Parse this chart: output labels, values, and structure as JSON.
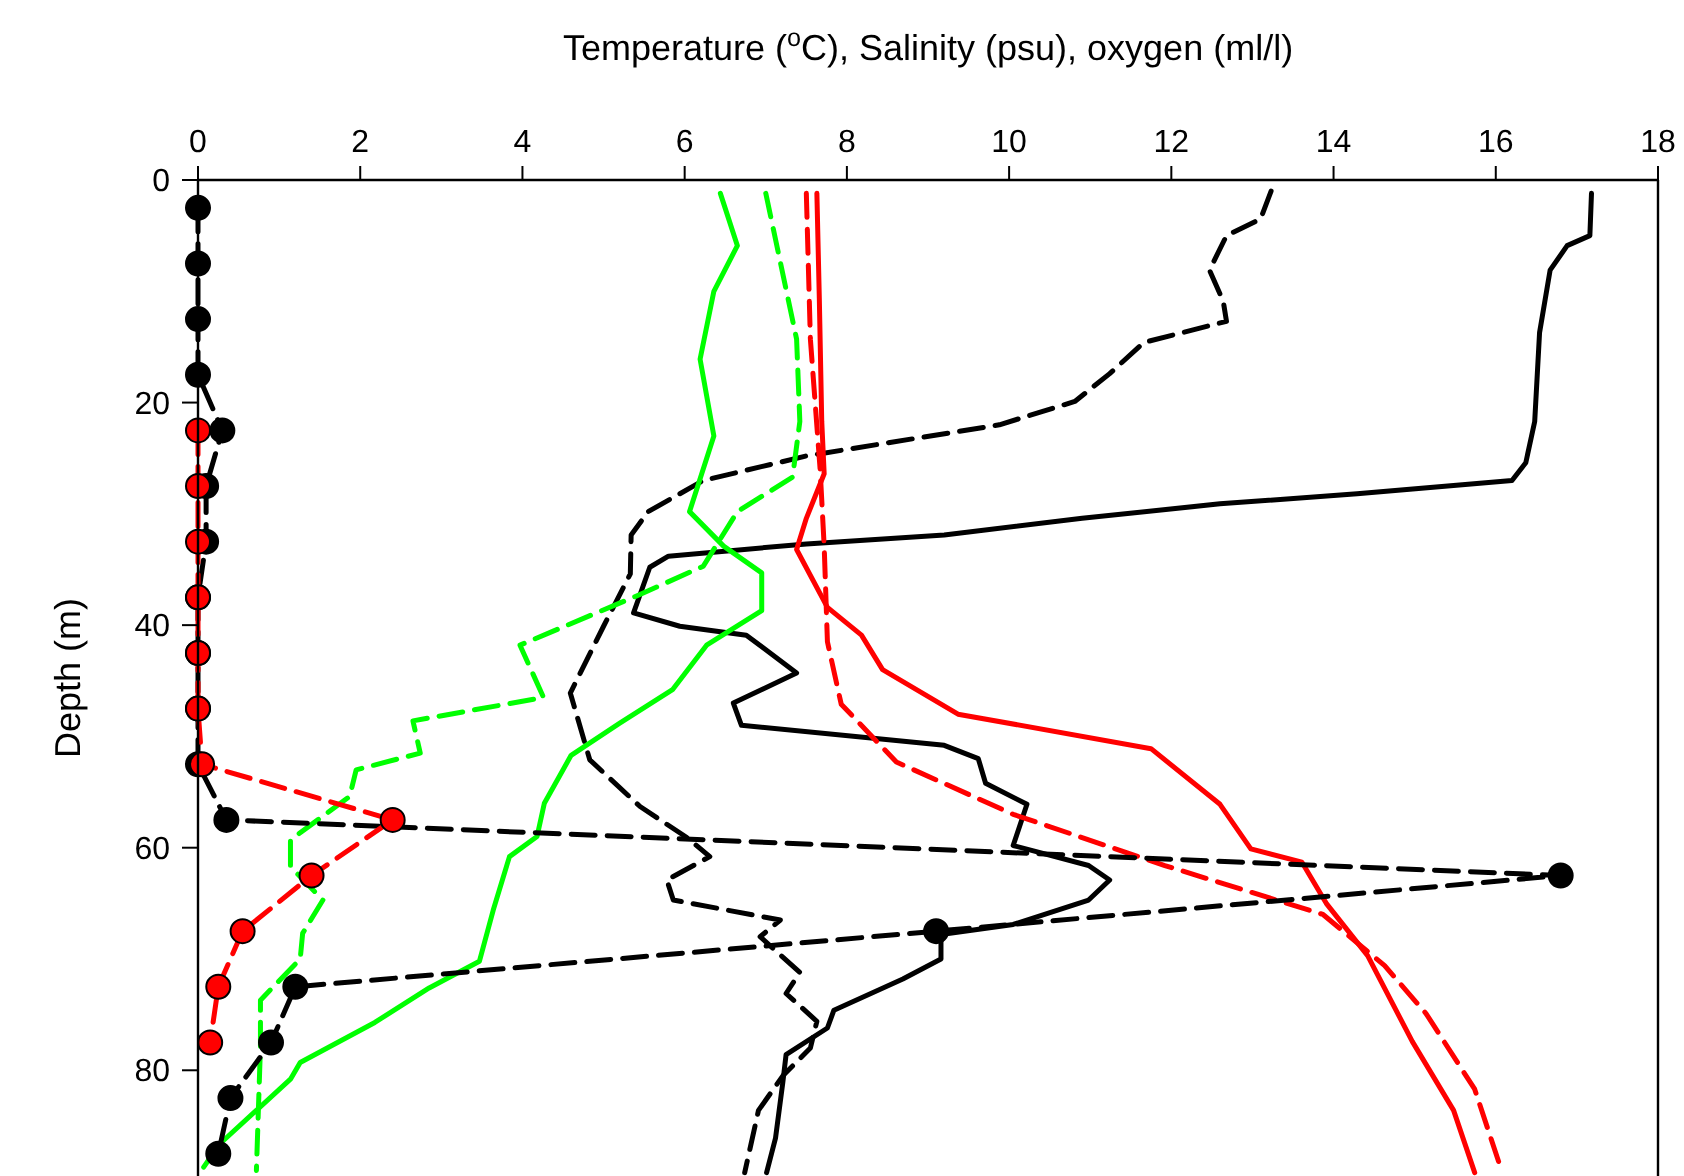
{
  "chart_data": {
    "type": "line",
    "orientation": "horizontal",
    "xlabel": "Temperature ($^{o}$C), Salinity (psu), oxygen (ml/l)",
    "ylabel": "Depth (m)",
    "xlim": [
      0,
      18
    ],
    "xticks": [
      0,
      2,
      4,
      6,
      8,
      10,
      12,
      14,
      16,
      18
    ],
    "ylim": [
      89.5,
      0
    ],
    "yticks": [
      0,
      20,
      40,
      60,
      80
    ],
    "series": [
      {
        "color": "#000000",
        "line_style": "solid",
        "marker": "none",
        "x": [
          1.2,
          5.0,
          5.9,
          8.1,
          13.7,
          21.7,
          25.4,
          27.0,
          28.2,
          29.1,
          30.4,
          31.9,
          32.7,
          33.8,
          34.8,
          38.9,
          40.1,
          40.9,
          44.3,
          47.0,
          49.0,
          50.8,
          52.0,
          54.2,
          56.1,
          59.8,
          61.6,
          62.9,
          64.7,
          66.9,
          67.8,
          70.0,
          71.8,
          74.6,
          76.2,
          78.6,
          81.1,
          86.1,
          89.2
        ],
        "values": [
          17.18,
          17.16,
          16.88,
          16.67,
          16.54,
          16.48,
          16.37,
          16.2,
          14.29,
          12.6,
          10.9,
          9.2,
          7.5,
          5.8,
          5.57,
          5.37,
          5.94,
          6.76,
          7.38,
          6.6,
          6.7,
          9.2,
          9.62,
          9.71,
          10.22,
          10.05,
          10.98,
          11.24,
          10.98,
          10.05,
          9.16,
          9.16,
          8.69,
          7.84,
          7.76,
          7.25,
          7.21,
          7.12,
          7.01
        ]
      },
      {
        "color": "#000000",
        "line_style": "dashed",
        "marker": "none",
        "x": [
          1.0,
          3.5,
          5.0,
          8.1,
          10.9,
          12.7,
          14.6,
          17.4,
          19.9,
          22.0,
          24.8,
          27.0,
          29.8,
          31.9,
          35.4,
          40.1,
          46.1,
          52.1,
          56.3,
          59.1,
          60.8,
          62.9,
          64.7,
          66.5,
          68.0,
          71.2,
          73.1,
          75.6,
          78.0,
          80.5,
          83.6,
          89.2
        ],
        "values": [
          13.23,
          13.1,
          12.68,
          12.47,
          12.64,
          12.68,
          11.66,
          11.24,
          10.81,
          9.88,
          7.5,
          6.23,
          5.55,
          5.34,
          5.33,
          5.0,
          4.59,
          4.83,
          5.45,
          6.03,
          6.31,
          5.78,
          5.86,
          7.18,
          6.93,
          7.42,
          7.25,
          7.63,
          7.55,
          7.21,
          6.91,
          6.74
        ]
      },
      {
        "color": "#ff0000",
        "line_style": "solid",
        "marker": "none",
        "x": [
          1.2,
          10.6,
          21.7,
          26.4,
          30.4,
          33.2,
          38.4,
          40.9,
          44.0,
          48.0,
          51.1,
          56.1,
          60.1,
          61.3,
          65.0,
          69.7,
          77.4,
          83.6,
          89.2
        ],
        "values": [
          7.63,
          7.66,
          7.69,
          7.72,
          7.5,
          7.38,
          7.76,
          8.18,
          8.44,
          9.37,
          11.75,
          12.6,
          12.98,
          13.61,
          13.91,
          14.42,
          14.97,
          15.48,
          15.74
        ]
      },
      {
        "color": "#ff0000",
        "line_style": "dashed",
        "marker": "none",
        "x": [
          1.2,
          14.3,
          26.0,
          32.9,
          41.5,
          47.1,
          52.3,
          57.0,
          61.6,
          66.0,
          70.6,
          74.9,
          81.7,
          89.2
        ],
        "values": [
          7.5,
          7.55,
          7.67,
          7.72,
          7.76,
          7.93,
          8.61,
          10.05,
          11.92,
          13.87,
          14.63,
          15.14,
          15.74,
          16.08
        ]
      },
      {
        "color": "#00ff00",
        "line_style": "solid",
        "marker": "none",
        "x": [
          1.2,
          5.9,
          10.0,
          16.1,
          23.0,
          29.8,
          32.9,
          35.3,
          38.7,
          41.8,
          45.8,
          48.8,
          51.7,
          56.0,
          59.0,
          60.8,
          65.6,
          70.2,
          72.6,
          75.7,
          79.3,
          80.8,
          86.6,
          88.7
        ],
        "values": [
          6.44,
          6.65,
          6.36,
          6.19,
          6.36,
          6.06,
          6.48,
          6.95,
          6.95,
          6.27,
          5.85,
          5.2,
          4.6,
          4.27,
          4.18,
          3.84,
          3.64,
          3.47,
          2.85,
          2.18,
          1.26,
          1.14,
          0.27,
          0.07
        ]
      },
      {
        "color": "#00ff00",
        "line_style": "dashed",
        "marker": "none",
        "x": [
          1.2,
          14.3,
          21.7,
          26.7,
          29.8,
          34.7,
          37.4,
          41.8,
          46.5,
          48.6,
          51.5,
          53.0,
          55.4,
          59.3,
          61.7,
          64.7,
          67.7,
          70.0,
          73.7,
          77.9,
          89.0
        ],
        "values": [
          7.0,
          7.38,
          7.42,
          7.33,
          6.65,
          6.23,
          5.4,
          3.97,
          4.26,
          2.65,
          2.74,
          1.95,
          1.87,
          1.14,
          1.14,
          1.54,
          1.29,
          1.26,
          0.77,
          0.77,
          0.72
        ]
      },
      {
        "color": "#000000",
        "line_style": "dashed",
        "marker": "circle",
        "x": [
          2.5,
          7.5,
          12.5,
          17.5,
          22.5,
          27.5,
          32.5,
          37.5,
          42.5,
          47.5,
          52.5,
          57.5,
          62.5,
          67.5,
          72.5,
          77.5,
          82.5,
          87.5
        ],
        "values": [
          0,
          0,
          0,
          0,
          0.3,
          0.1,
          0.1,
          0,
          0,
          0,
          0,
          0.35,
          16.8,
          9.1,
          1.2,
          0.9,
          0.4,
          0.25
        ]
      },
      {
        "color": "#ff0000",
        "line_style": "dashed",
        "marker": "circle",
        "x": [
          22.5,
          27.5,
          32.5,
          37.5,
          42.5,
          47.5,
          52.5,
          57.5,
          62.5,
          67.5,
          72.5,
          77.5
        ],
        "values": [
          0,
          0,
          0,
          0,
          0,
          0,
          0.05,
          2.4,
          1.4,
          0.55,
          0.25,
          0.15
        ]
      }
    ]
  }
}
